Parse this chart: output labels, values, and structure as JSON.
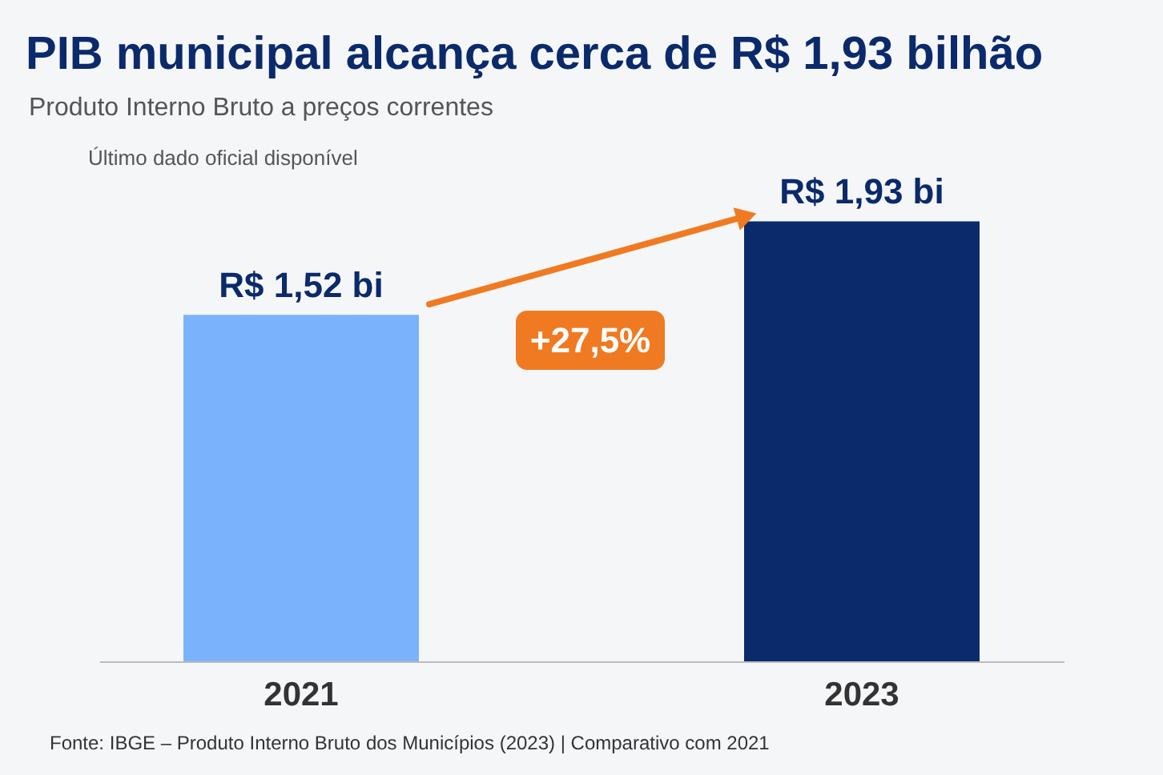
{
  "chart_data": {
    "type": "bar",
    "title": "PIB municipal alcança cerca de R$ 1,93 bilhão",
    "subtitle": "Produto Interno Bruto a preços correntes",
    "categories": [
      "2021",
      "2023"
    ],
    "values": [
      1.52,
      1.93
    ],
    "colors": [
      "#7ab3fb",
      "#0b2a6b"
    ],
    "value_labels": [
      "R$ 1,52 bi",
      "R$ 1,93 bi"
    ],
    "annotations": [
      "+27,5%",
      "Último dado oficial disponível",
      "Fonte: IBGE – Produto Interno Bruto dos Municípios (2023) | Comparativo com 2021"
    ]
  }
}
